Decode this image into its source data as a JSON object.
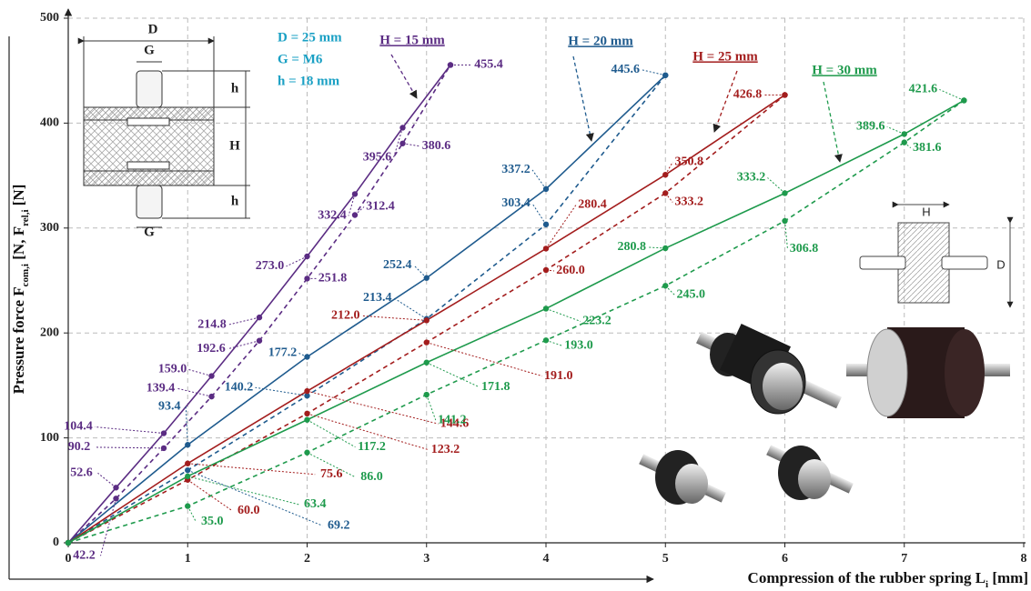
{
  "chart_data": {
    "type": "line",
    "x_label": [
      "Compression of the rubber spring L",
      "i",
      " [mm]"
    ],
    "y_label": [
      "Pressure force F",
      "com,i",
      " [N, F",
      "rel,i",
      " [N]"
    ],
    "xlim": [
      0,
      8
    ],
    "ylim": [
      0,
      500
    ],
    "xticks": [
      0,
      1,
      2,
      3,
      4,
      5,
      6,
      7,
      8
    ],
    "yticks": [
      0,
      100,
      200,
      300,
      400,
      500
    ],
    "grid": true,
    "series": [
      {
        "style": "solid",
        "color": "#5b2c83",
        "x": [
          0,
          0.4,
          0.8,
          1.2,
          1.6,
          2.0,
          2.4,
          2.8,
          3.2
        ],
        "values": [
          0,
          52.6,
          104.4,
          159.0,
          214.8,
          273.0,
          332.4,
          395.6,
          455.4
        ],
        "value_labels": [
          null,
          "52.6",
          "104.4",
          "159.0",
          "214.8",
          "273.0",
          "332.4",
          "395.6",
          "455.4"
        ]
      },
      {
        "style": "dashed",
        "color": "#5b2c83",
        "x": [
          0,
          0.4,
          0.8,
          1.2,
          1.6,
          2.0,
          2.4,
          2.8,
          3.2
        ],
        "values": [
          0,
          42.2,
          90.2,
          139.4,
          192.6,
          251.8,
          312.4,
          380.6,
          455.4
        ],
        "value_labels": [
          null,
          "42.2",
          "90.2",
          "139.4",
          "192.6",
          "251.8",
          "312.4",
          "380.6",
          null
        ]
      },
      {
        "style": "solid",
        "color": "#1f5b8e",
        "x": [
          0,
          1,
          2,
          3,
          4,
          5
        ],
        "values": [
          0,
          93.4,
          177.2,
          252.4,
          337.2,
          445.6
        ],
        "value_labels": [
          null,
          "93.4",
          "177.2",
          "252.4",
          "337.2",
          "445.6"
        ]
      },
      {
        "style": "dashed",
        "color": "#1f5b8e",
        "x": [
          0,
          1,
          2,
          3,
          4,
          5
        ],
        "values": [
          0,
          69.2,
          140.2,
          213.4,
          303.4,
          445.6
        ],
        "value_labels": [
          null,
          "69.2",
          "140.2",
          "213.4",
          "303.4",
          null
        ]
      },
      {
        "style": "solid",
        "color": "#a31d1d",
        "x": [
          0,
          1,
          2,
          3,
          4,
          5,
          6
        ],
        "values": [
          0,
          75.6,
          144.6,
          212.0,
          280.4,
          350.8,
          426.8
        ],
        "value_labels": [
          null,
          "75.6",
          "144.6",
          "212.0",
          "280.4",
          "350.8",
          "426.8"
        ]
      },
      {
        "style": "dashed",
        "color": "#a31d1d",
        "x": [
          0,
          1,
          2,
          3,
          4,
          5,
          6
        ],
        "values": [
          0,
          60.0,
          123.2,
          191.0,
          260.0,
          333.2,
          426.8
        ],
        "value_labels": [
          null,
          "60.0",
          "123.2",
          "191.0",
          "260.0",
          "333.2",
          null
        ]
      },
      {
        "style": "solid",
        "color": "#1e9a4c",
        "x": [
          0,
          1,
          2,
          3,
          4,
          5,
          6,
          7,
          7.5
        ],
        "values": [
          0,
          63.4,
          117.2,
          171.8,
          223.2,
          280.8,
          333.2,
          389.6,
          421.6
        ],
        "value_labels": [
          null,
          "63.4",
          "117.2",
          "171.8",
          "223.2",
          "280.8",
          "333.2",
          "389.6",
          "421.6"
        ]
      },
      {
        "style": "dashed",
        "color": "#1e9a4c",
        "x": [
          0,
          1,
          2,
          3,
          4,
          5,
          6,
          7,
          7.5
        ],
        "values": [
          0,
          35.0,
          86.0,
          141.2,
          193.0,
          245.0,
          306.8,
          381.6,
          421.6
        ],
        "value_labels": [
          null,
          "35.0",
          "86.0",
          "141.2",
          "193.0",
          "245.0",
          "306.8",
          "381.6",
          null
        ]
      }
    ],
    "annotations": [
      {
        "text": "H = 15 mm",
        "color": "#5b2c83"
      },
      {
        "text": "H = 20 mm",
        "color": "#1f5b8e"
      },
      {
        "text": "H = 25 mm",
        "color": "#a31d1d"
      },
      {
        "text": "H = 30 mm",
        "color": "#1e9a4c"
      }
    ],
    "inset": {
      "specs": [
        "D = 25 mm",
        "G = M6",
        "h = 18 mm"
      ],
      "labels": [
        "D",
        "G",
        "h",
        "H",
        "h",
        "G"
      ],
      "small_labels": [
        "H",
        "D"
      ]
    }
  }
}
